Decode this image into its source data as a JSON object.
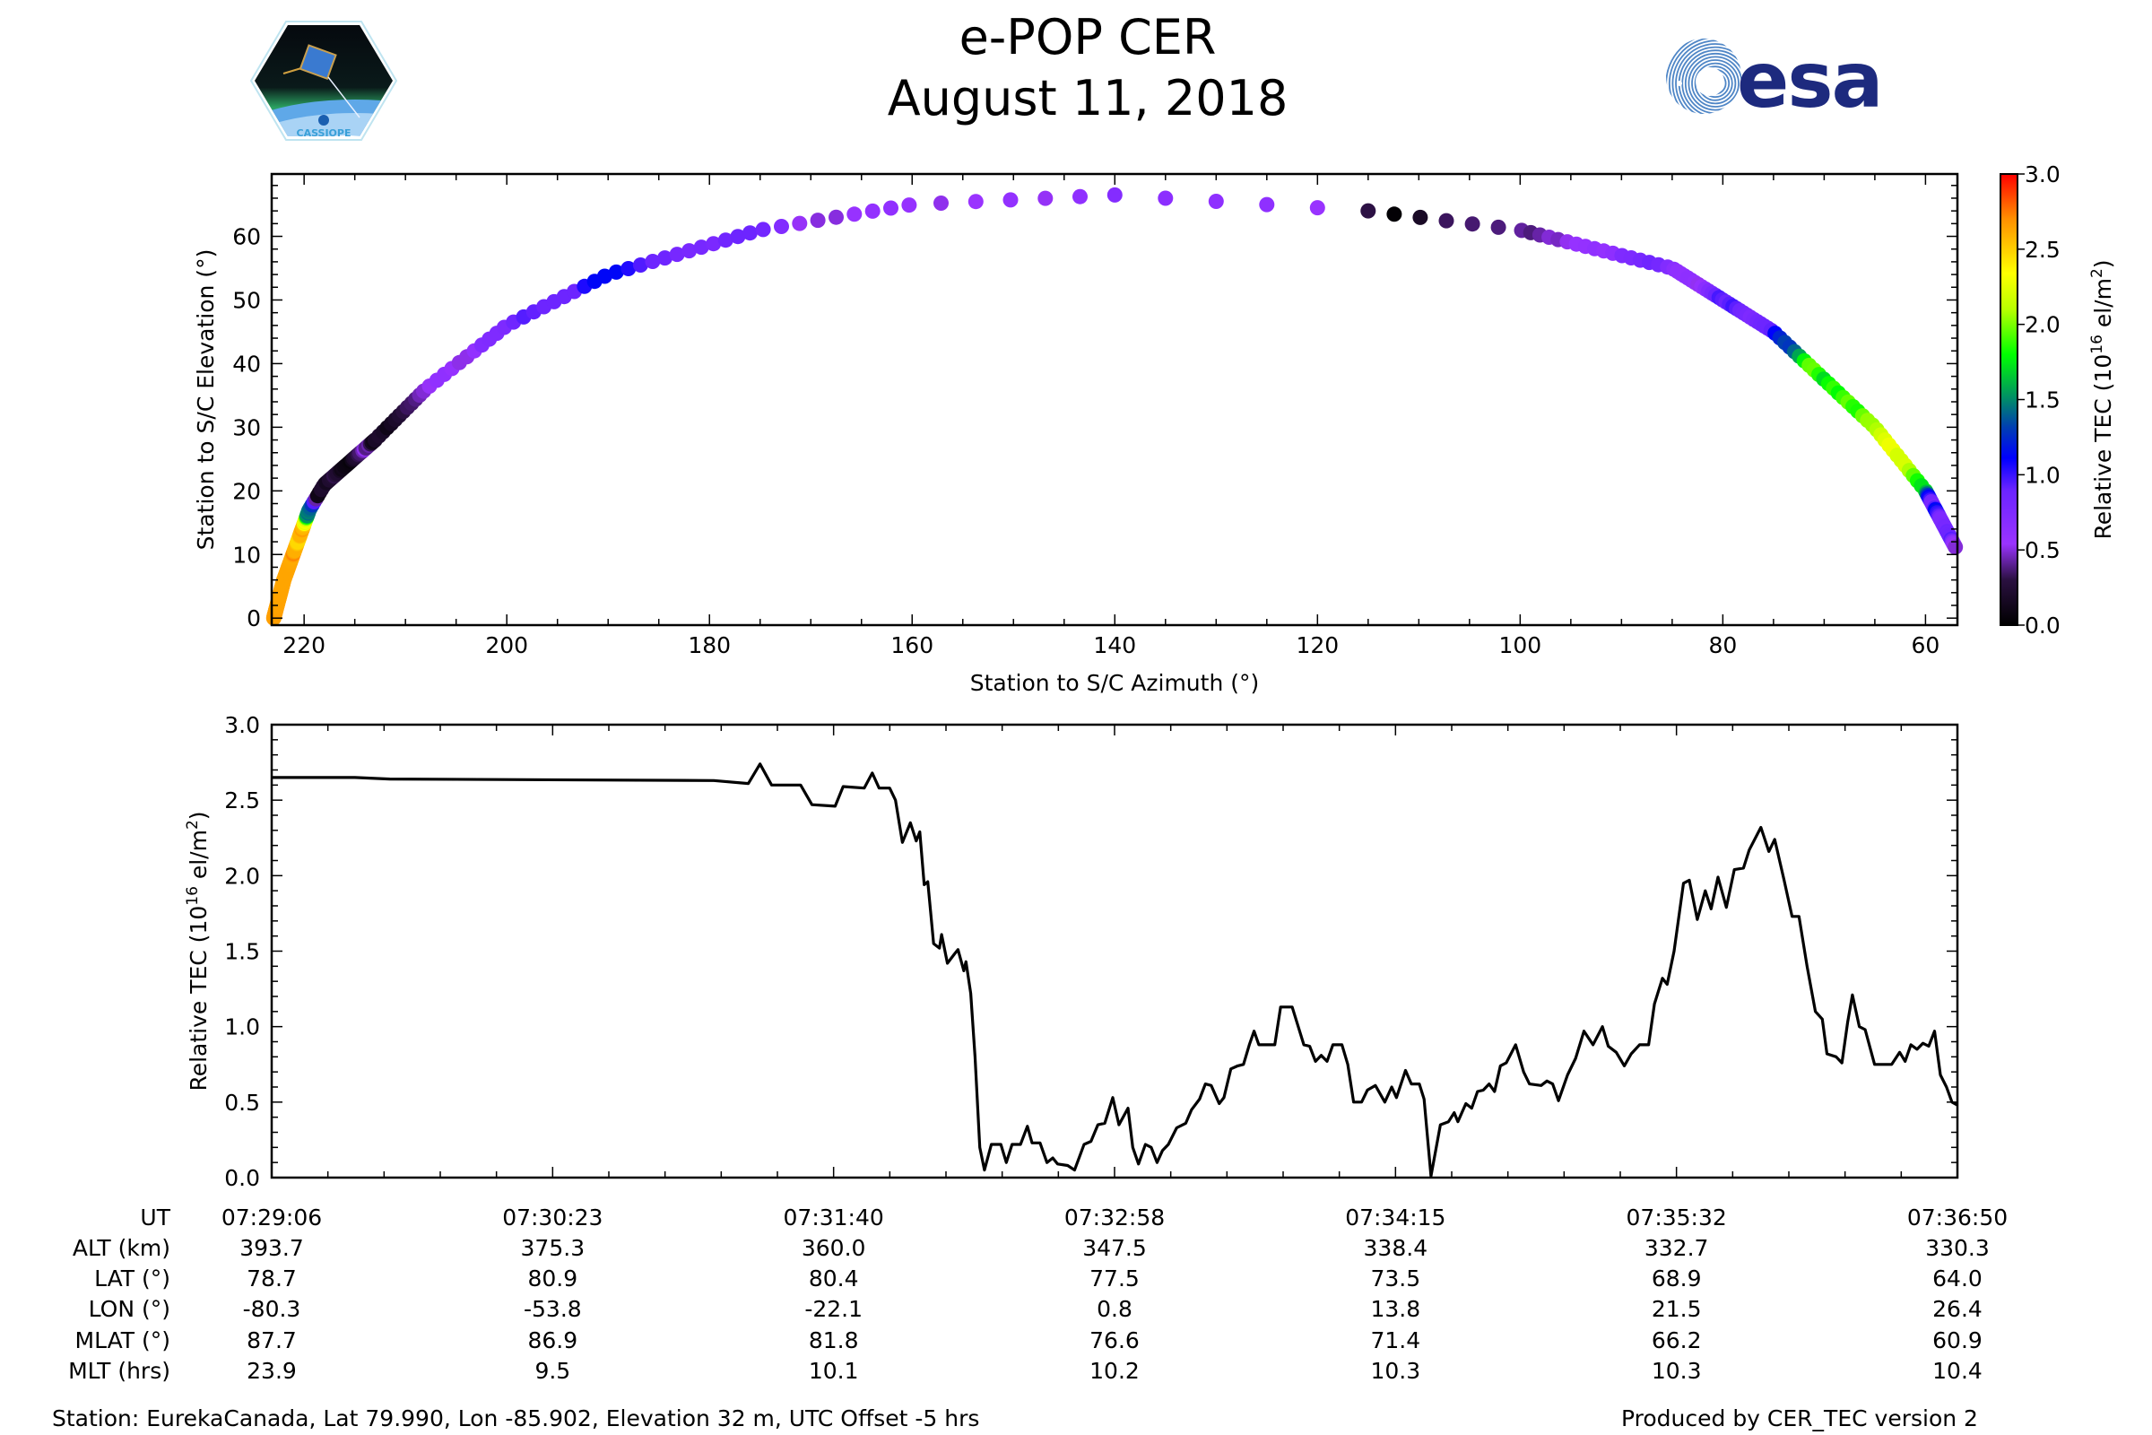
{
  "header": {
    "title": "e-POP CER",
    "date": "August 11, 2018"
  },
  "logos": {
    "left": "CASSIOPE",
    "right": "esa"
  },
  "colors": {
    "esa_navy": "#1d2a7e",
    "esa_light": "#4f86c6",
    "line": "#000000"
  },
  "colorbar": {
    "label": "Relative TEC (10",
    "label_sup": "16",
    "label_tail": " el/m",
    "label_sup2": "2",
    "label_end": ")",
    "range": [
      0,
      3
    ],
    "ticks": [
      "0.0",
      "0.5",
      "1.0",
      "1.5",
      "2.0",
      "2.5",
      "3.0"
    ],
    "stops": [
      [
        0,
        "#000000"
      ],
      [
        0.1,
        "#2a1040"
      ],
      [
        0.18,
        "#9a33ff"
      ],
      [
        0.3,
        "#6a24ff"
      ],
      [
        0.37,
        "#0000ff"
      ],
      [
        0.44,
        "#0040b0"
      ],
      [
        0.5,
        "#008a6a"
      ],
      [
        0.6,
        "#00ff00"
      ],
      [
        0.7,
        "#b8ff00"
      ],
      [
        0.78,
        "#ffff00"
      ],
      [
        0.9,
        "#ff9000"
      ],
      [
        1,
        "#ff0000"
      ]
    ]
  },
  "chart_data": [
    {
      "type": "scatter",
      "title": "",
      "xlabel": "Station to S/C Azimuth (°)",
      "ylabel": "Station to S/C Elevation (°)",
      "xlim": [
        223.2,
        56.85
      ],
      "ylim": [
        -1.1,
        69.8
      ],
      "xticks": [
        220,
        200,
        180,
        160,
        140,
        120,
        100,
        80,
        60
      ],
      "yticks": [
        0,
        10,
        20,
        30,
        40,
        50,
        60
      ],
      "color_by": "Relative TEC",
      "track_anchors": {
        "t": [
          0,
          100,
          190,
          200,
          240,
          255,
          268,
          280,
          295,
          305,
          312,
          318,
          325,
          345,
          380,
          405,
          420,
          464
        ],
        "azimuth": [
          223,
          222,
          219.5,
          218,
          213,
          208,
          200,
          190,
          175,
          160,
          140,
          115,
          100,
          85,
          75,
          65,
          60,
          57
        ],
        "elevation": [
          0,
          6,
          17,
          21,
          28,
          36,
          46,
          54,
          61,
          65,
          66.5,
          64,
          61,
          55,
          45,
          30,
          20,
          11
        ]
      }
    },
    {
      "type": "line",
      "title": "",
      "xlabel": "",
      "ylabel": "Relative TEC (10",
      "ylabel_sup": "16",
      "ylabel_tail": " el/m",
      "ylabel_sup2": "2",
      "ylabel_end": ")",
      "xlim_seconds": [
        0,
        464
      ],
      "ylim": [
        0,
        3
      ],
      "yticks": [
        "0.0",
        "0.5",
        "1.0",
        "1.5",
        "2.0",
        "2.5",
        "3.0"
      ],
      "t": [
        0,
        22.9,
        32.5,
        121.7,
        131.2,
        134.4,
        137.6,
        145.6,
        148.7,
        155.1,
        157.3,
        163.1,
        165.3,
        167.2,
        170.1,
        171.7,
        173.6,
        175.8,
        177.4,
        178.4,
        179.6,
        180.6,
        182.2,
        183.8,
        184.4,
        186.0,
        187.9,
        188.9,
        190.5,
        191.1,
        192.4,
        193.6,
        194.9,
        196.2,
        198.1,
        200.7,
        202.2,
        203.8,
        206.1,
        208.0,
        209.3,
        211.5,
        213.4,
        215.0,
        216.3,
        219.1,
        221.0,
        223.6,
        225.5,
        227.4,
        229.3,
        231.5,
        233.2,
        235.7,
        237.0,
        238.6,
        240.5,
        242.1,
        243.7,
        245.2,
        246.8,
        249.1,
        251.6,
        253.2,
        255.4,
        257.0,
        258.6,
        260.8,
        262.1,
        264.0,
        265.9,
        267.5,
        269.1,
        270.4,
        271.7,
        276.1,
        277.7,
        280.9,
        284.1,
        285.7,
        287.3,
        288.9,
        290.5,
        292.1,
        294.6,
        296.2,
        297.8,
        300.0,
        301.6,
        303.8,
        306.4,
        308.3,
        309.6,
        312.1,
        313.7,
        315.9,
        317.2,
        319.1,
        321.7,
        323.9,
        325.5,
        326.5,
        328.7,
        330.3,
        331.9,
        333.5,
        335.1,
        336.6,
        338.2,
        339.8,
        342.4,
        344.6,
        346.2,
        349.4,
        351.0,
        352.6,
        354.2,
        356.7,
        358.9,
        361.2,
        363.7,
        366.3,
        367.9,
        370.1,
        372.3,
        374.2,
        376.5,
        379.0,
        380.6,
        382.8,
        384.1,
        386.0,
        388.6,
        390.2,
        392.4,
        394.6,
        396.2,
        398.1,
        400.4,
        402.6,
        405.1,
        406.7,
        409.9,
        412.1,
        413.7,
        416.3,
        418.5,
        420.4,
        422.6,
        424.9,
        426.8,
        428.1,
        430.6,
        432.2,
        433.8,
        435.1,
        437.0,
        438.6,
        441.2,
        445.9,
        448.1,
        449.6,
        451.2,
        452.9,
        454.5,
        456.1,
        457.7,
        459.3,
        461.0,
        462.5,
        464.0
      ],
      "tec": [
        2.65,
        2.65,
        2.64,
        2.63,
        2.61,
        2.74,
        2.6,
        2.6,
        2.47,
        2.46,
        2.59,
        2.58,
        2.68,
        2.58,
        2.58,
        2.5,
        2.22,
        2.35,
        2.23,
        2.29,
        1.94,
        1.96,
        1.55,
        1.52,
        1.61,
        1.42,
        1.48,
        1.51,
        1.37,
        1.43,
        1.22,
        0.8,
        0.2,
        0.05,
        0.22,
        0.22,
        0.1,
        0.22,
        0.22,
        0.34,
        0.23,
        0.23,
        0.1,
        0.13,
        0.09,
        0.08,
        0.05,
        0.22,
        0.24,
        0.35,
        0.36,
        0.53,
        0.35,
        0.46,
        0.2,
        0.09,
        0.22,
        0.2,
        0.1,
        0.18,
        0.22,
        0.33,
        0.36,
        0.45,
        0.52,
        0.62,
        0.61,
        0.49,
        0.53,
        0.72,
        0.74,
        0.75,
        0.88,
        0.97,
        0.88,
        0.88,
        1.13,
        1.13,
        0.88,
        0.87,
        0.77,
        0.81,
        0.77,
        0.88,
        0.88,
        0.75,
        0.5,
        0.5,
        0.58,
        0.61,
        0.5,
        0.6,
        0.53,
        0.71,
        0.62,
        0.62,
        0.52,
        0.01,
        0.35,
        0.37,
        0.43,
        0.37,
        0.49,
        0.46,
        0.57,
        0.58,
        0.62,
        0.57,
        0.74,
        0.76,
        0.88,
        0.7,
        0.62,
        0.61,
        0.64,
        0.62,
        0.51,
        0.68,
        0.79,
        0.97,
        0.88,
        1.0,
        0.87,
        0.83,
        0.74,
        0.82,
        0.88,
        0.88,
        1.15,
        1.32,
        1.28,
        1.5,
        1.95,
        1.97,
        1.71,
        1.9,
        1.78,
        1.99,
        1.79,
        2.04,
        2.05,
        2.17,
        2.32,
        2.16,
        2.24,
        1.97,
        1.73,
        1.73,
        1.4,
        1.1,
        1.05,
        0.82,
        0.8,
        0.76,
        1.03,
        1.21,
        1.0,
        0.98,
        0.75,
        0.75,
        0.83,
        0.77,
        0.88,
        0.85,
        0.89,
        0.87,
        0.97,
        0.68,
        0.6,
        0.5,
        0.48
      ]
    }
  ],
  "table": {
    "row_labels": [
      "UT",
      "ALT (km)",
      "LAT (°)",
      "LON (°)",
      "MLAT (°)",
      "MLT (hrs)"
    ],
    "columns": [
      [
        "07:29:06",
        "393.7",
        "78.7",
        "-80.3",
        "87.7",
        "23.9"
      ],
      [
        "07:30:23",
        "375.3",
        "80.9",
        "-53.8",
        "86.9",
        "9.5"
      ],
      [
        "07:31:40",
        "360.0",
        "80.4",
        "-22.1",
        "81.8",
        "10.1"
      ],
      [
        "07:32:58",
        "347.5",
        "77.5",
        "0.8",
        "76.6",
        "10.2"
      ],
      [
        "07:34:15",
        "338.4",
        "73.5",
        "13.8",
        "71.4",
        "10.3"
      ],
      [
        "07:35:32",
        "332.7",
        "68.9",
        "21.5",
        "66.2",
        "10.3"
      ],
      [
        "07:36:50",
        "330.3",
        "64.0",
        "26.4",
        "60.9",
        "10.4"
      ]
    ]
  },
  "footer": {
    "station": "Station: EurekaCanada, Lat 79.990, Lon -85.902, Elevation 32 m, UTC Offset -5 hrs",
    "produced": "Produced by CER_TEC version 2"
  }
}
